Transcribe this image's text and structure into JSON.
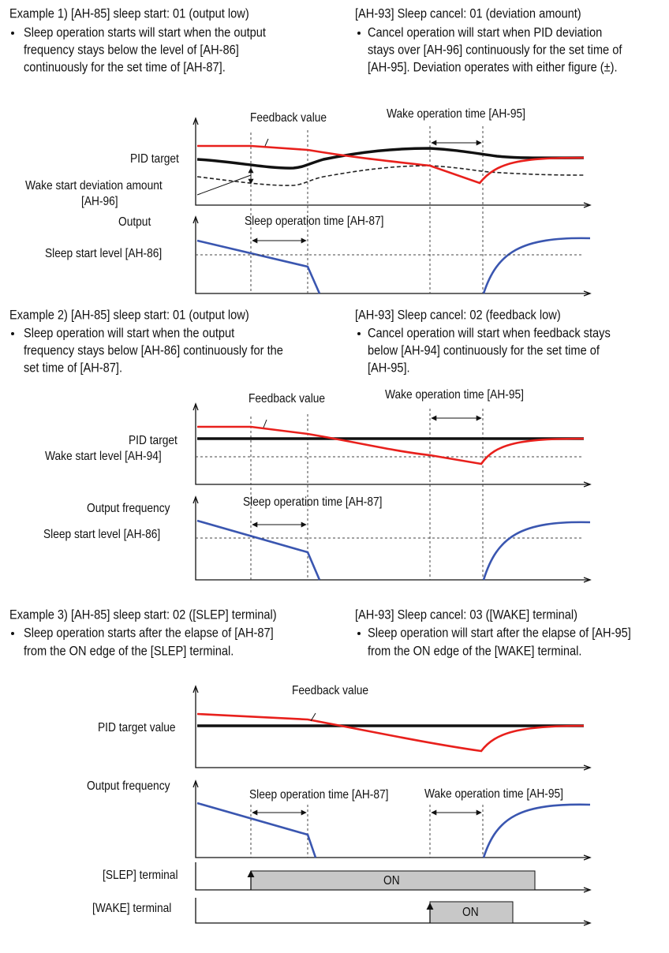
{
  "examples": [
    {
      "left": {
        "heading": "Example 1) [AH-85] sleep start: 01 (output low)",
        "lines": [
          "Sleep operation starts will start when the output",
          "frequency stays below the level of [AH-86]",
          "continuously for the set time of [AH-87]."
        ]
      },
      "right": {
        "heading": "[AH-93] Sleep cancel: 01 (deviation amount)",
        "lines": [
          "Cancel operation will start when PID deviation",
          "stays over [AH-96] continuously for the set time of",
          "[AH-95]. Deviation operates with either figure (±)."
        ]
      },
      "labels": {
        "feedback": "Feedback value",
        "wake_time": "Wake operation time [AH-95]",
        "pid_target": "PID target",
        "deviation": "Wake start deviation amount",
        "deviation_code": "[AH-96]",
        "output": "Output",
        "sleep_time": "Sleep operation time [AH-87]",
        "sleep_level": "Sleep start level [AH-86]"
      }
    },
    {
      "left": {
        "heading": "Example 2) [AH-85] sleep start: 01 (output low)",
        "lines": [
          "Sleep operation will start when the output",
          "frequency stays below [AH-86] continuously for the",
          "set time of [AH-87]."
        ]
      },
      "right": {
        "heading": "[AH-93] Sleep cancel: 02 (feedback low)",
        "lines": [
          "Cancel operation will start when feedback stays",
          "below [AH-94] continuously for the set time of",
          "[AH-95]."
        ]
      },
      "labels": {
        "feedback": "Feedback value",
        "wake_time": "Wake operation time [AH-95]",
        "pid_target": "PID target",
        "wake_level": "Wake start level [AH-94]",
        "output": "Output frequency",
        "sleep_time": "Sleep operation time [AH-87]",
        "sleep_level": "Sleep start level [AH-86]"
      }
    },
    {
      "left": {
        "heading": "Example 3) [AH-85] sleep start: 02 ([SLEP] terminal)",
        "lines": [
          "Sleep operation starts after the elapse of [AH-87]",
          "from the ON edge of the [SLEP] terminal."
        ]
      },
      "right": {
        "heading": "[AH-93] Sleep cancel: 03 ([WAKE] terminal)",
        "lines": [
          "Sleep operation will start after the elapse of [AH-95]",
          "from the ON edge of the [WAKE] terminal."
        ]
      },
      "labels": {
        "feedback": "Feedback value",
        "pid_target": "PID target value",
        "output": "Output frequency",
        "sleep_time": "Sleep operation time [AH-87]",
        "wake_time": "Wake operation time [AH-95]",
        "slep_terminal": "[SLEP] terminal",
        "slep_on": "ON",
        "wake_terminal": "[WAKE] terminal",
        "wake_on": "ON"
      }
    }
  ]
}
